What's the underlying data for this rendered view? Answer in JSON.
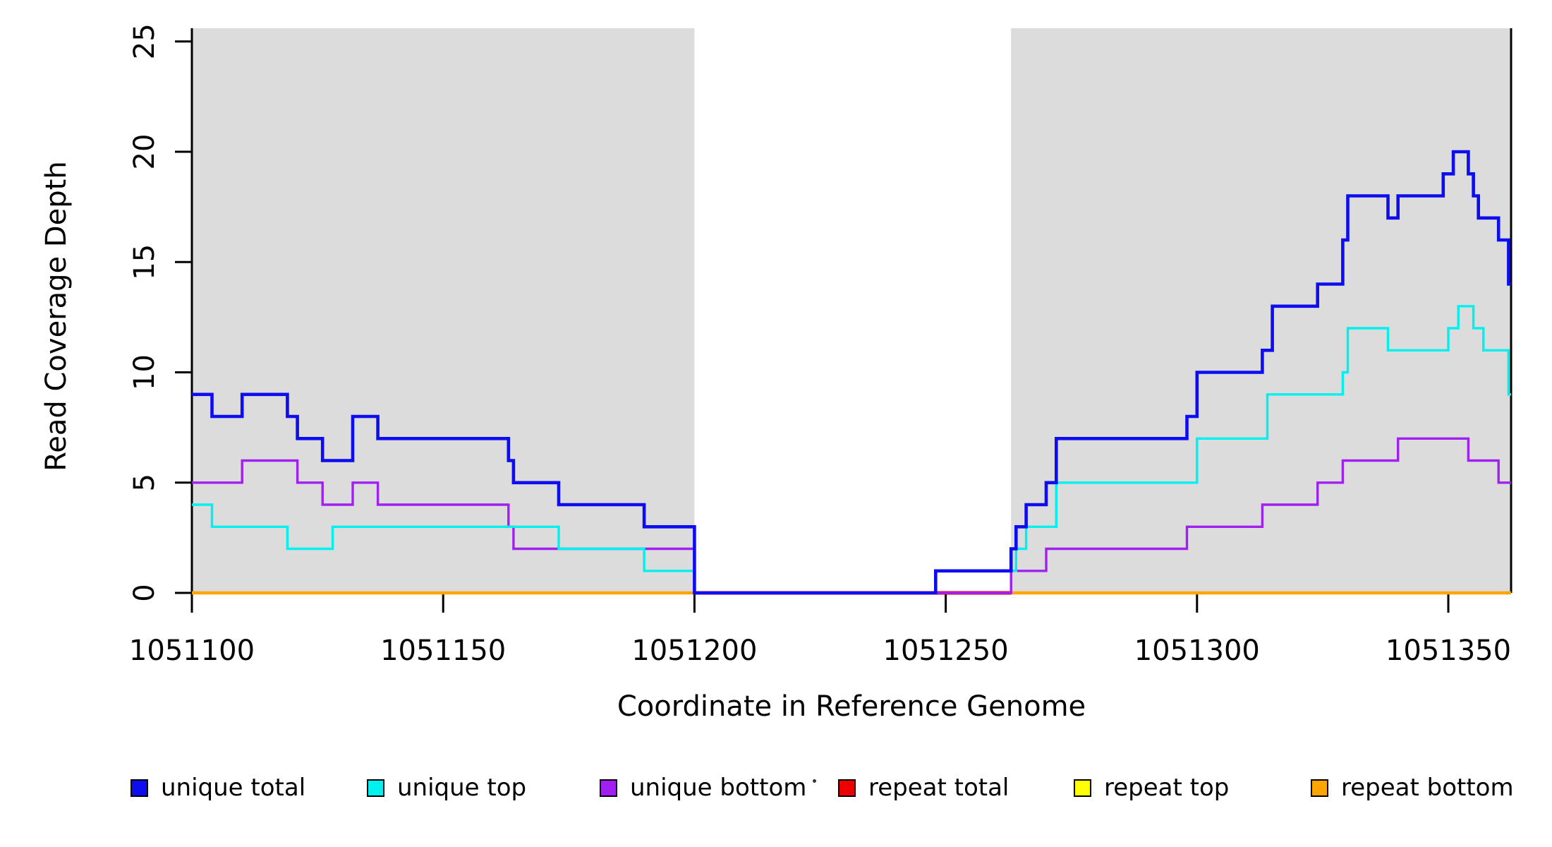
{
  "figure": {
    "xlabel": "Coordinate in Reference Genome",
    "ylabel": "Read Coverage Depth"
  },
  "legend": {
    "stray_dot": "",
    "items": [
      {
        "label": "unique total",
        "color": "#0D0DF0"
      },
      {
        "label": "unique top",
        "color": "#00F0F0"
      },
      {
        "label": "unique bottom",
        "color": "#A020F0"
      },
      {
        "label": "repeat total",
        "color": "#EE0000"
      },
      {
        "label": "repeat top",
        "color": "#FFFF00"
      },
      {
        "label": "repeat bottom",
        "color": "#FFA500"
      }
    ]
  },
  "chart_data": {
    "type": "line",
    "subtype": "step",
    "title": "",
    "xlabel": "Coordinate in Reference Genome",
    "ylabel": "Read Coverage Depth",
    "grid": false,
    "legend_position": "bottom",
    "x_axis": {
      "range": [
        1051100,
        1051362.5
      ],
      "ticks": [
        1051100,
        1051150,
        1051200,
        1051250,
        1051300,
        1051350
      ]
    },
    "y_axis": {
      "range": [
        0,
        25.6
      ],
      "ticks": [
        0,
        5,
        10,
        15,
        20,
        25
      ]
    },
    "shaded_regions": {
      "color": "#DCDCDC",
      "ranges": [
        [
          1051100,
          1051200
        ],
        [
          1051263,
          1051362.5
        ]
      ]
    },
    "series": [
      {
        "name": "repeat-total",
        "label": "repeat total",
        "color": "#EE0000",
        "line_width": 5,
        "draw_ranges": [
          [
            1051200,
            1051263
          ]
        ],
        "steps": [
          [
            1051200,
            0
          ]
        ]
      },
      {
        "name": "repeat-top",
        "label": "repeat top",
        "color": "#FFFF00",
        "line_width": 3,
        "draw_ranges": [
          [
            1051100,
            1051200
          ],
          [
            1051263,
            1051362.5
          ]
        ],
        "steps": [
          [
            1051100,
            0
          ]
        ]
      },
      {
        "name": "repeat-bottom",
        "label": "repeat bottom",
        "color": "#FFA500",
        "line_width": 4.4,
        "draw_ranges": [
          [
            1051100,
            1051200
          ],
          [
            1051263,
            1051362.5
          ]
        ],
        "steps": [
          [
            1051100,
            0
          ]
        ]
      },
      {
        "name": "unique-bottom",
        "label": "unique bottom",
        "color": "#A020F0",
        "line_width": 3.4,
        "steps": [
          [
            1051100,
            5
          ],
          [
            1051110,
            6
          ],
          [
            1051121,
            5
          ],
          [
            1051126,
            4
          ],
          [
            1051132,
            5
          ],
          [
            1051137,
            4
          ],
          [
            1051163,
            3
          ],
          [
            1051164,
            2
          ],
          [
            1051200,
            0
          ],
          [
            1051263,
            1
          ],
          [
            1051270,
            2
          ],
          [
            1051298,
            3
          ],
          [
            1051313,
            4
          ],
          [
            1051324,
            5
          ],
          [
            1051329,
            6
          ],
          [
            1051340,
            7
          ],
          [
            1051354,
            6
          ],
          [
            1051360,
            5
          ]
        ]
      },
      {
        "name": "unique-top",
        "label": "unique top",
        "color": "#00F0F0",
        "line_width": 3.4,
        "steps": [
          [
            1051100,
            4
          ],
          [
            1051104,
            3
          ],
          [
            1051119,
            2
          ],
          [
            1051128,
            3
          ],
          [
            1051173,
            2
          ],
          [
            1051190,
            1
          ],
          [
            1051200,
            0
          ],
          [
            1051248,
            1
          ],
          [
            1051264,
            2
          ],
          [
            1051266,
            3
          ],
          [
            1051272,
            5
          ],
          [
            1051300,
            7
          ],
          [
            1051314,
            9
          ],
          [
            1051329,
            10
          ],
          [
            1051330,
            12
          ],
          [
            1051338,
            11
          ],
          [
            1051350,
            12
          ],
          [
            1051352,
            13
          ],
          [
            1051355,
            12
          ],
          [
            1051357,
            11
          ],
          [
            1051362,
            9
          ]
        ]
      },
      {
        "name": "unique-total",
        "label": "unique total",
        "color": "#0D0DF0",
        "line_width": 4.6,
        "steps": [
          [
            1051100,
            9
          ],
          [
            1051104,
            8
          ],
          [
            1051110,
            9
          ],
          [
            1051119,
            8
          ],
          [
            1051121,
            7
          ],
          [
            1051126,
            6
          ],
          [
            1051132,
            8
          ],
          [
            1051137,
            7
          ],
          [
            1051163,
            6
          ],
          [
            1051164,
            5
          ],
          [
            1051173,
            4
          ],
          [
            1051190,
            3
          ],
          [
            1051200,
            0
          ],
          [
            1051248,
            1
          ],
          [
            1051263,
            2
          ],
          [
            1051264,
            3
          ],
          [
            1051266,
            4
          ],
          [
            1051270,
            5
          ],
          [
            1051272,
            7
          ],
          [
            1051298,
            8
          ],
          [
            1051300,
            10
          ],
          [
            1051313,
            11
          ],
          [
            1051315,
            13
          ],
          [
            1051324,
            14
          ],
          [
            1051329,
            16
          ],
          [
            1051330,
            18
          ],
          [
            1051338,
            17
          ],
          [
            1051340,
            18
          ],
          [
            1051349,
            19
          ],
          [
            1051351,
            20
          ],
          [
            1051354,
            19
          ],
          [
            1051355,
            18
          ],
          [
            1051356,
            17
          ],
          [
            1051360,
            16
          ],
          [
            1051362,
            14
          ]
        ]
      }
    ]
  }
}
